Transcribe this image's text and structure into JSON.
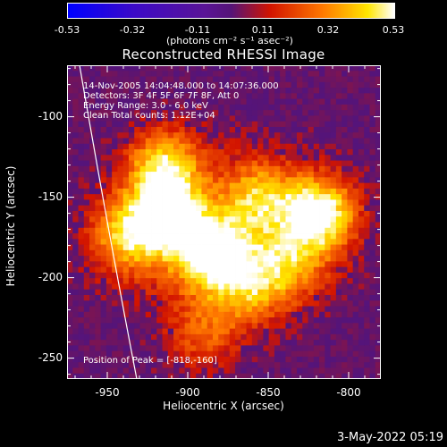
{
  "colorbar": {
    "ticks": [
      "-0.53",
      "-0.32",
      "-0.11",
      "0.11",
      "0.32",
      "0.53"
    ],
    "units": "(photons cm⁻² s⁻¹ asec⁻²)",
    "colors": [
      "#0000ff",
      "#5000c0",
      "#4a0a78",
      "#d00000",
      "#ff8000",
      "#ffff00",
      "#ffffff"
    ]
  },
  "header": {
    "title": "Reconstructed RHESSI Image"
  },
  "info": {
    "line1": "14-Nov-2005 14:04:48.000 to 14:07:36.000",
    "line2": "Detectors: 3F 4F 5F 6F 7F 8F, Att 0",
    "line3": "Energy Range: 3.0 - 6.0 keV",
    "line4": "Clean      Total counts: 1.12E+04",
    "peak": "Position of Peak = [-818,-160]"
  },
  "footer": {
    "date": "3-May-2022 05:19"
  },
  "chart_data": {
    "type": "heatmap",
    "title": "Reconstructed RHESSI Image",
    "xlabel": "Heliocentric X (arcsec)",
    "ylabel": "Heliocentric Y (arcsec)",
    "xlim": [
      -975,
      -780
    ],
    "ylim": [
      -263,
      -68
    ],
    "xticks": [
      "-950",
      "-900",
      "-850",
      "-800"
    ],
    "yticks": [
      "-100",
      "-150",
      "-200",
      "-250"
    ],
    "xtick_values": [
      -950,
      -900,
      -850,
      -800
    ],
    "ytick_values": [
      -100,
      -150,
      -200,
      -250
    ],
    "colorbar_range": [
      -0.53,
      0.53
    ],
    "peak_position": [
      -818,
      -160
    ],
    "sources": [
      {
        "x": -818,
        "y": -160,
        "intensity": 0.53
      },
      {
        "x": -915,
        "y": -162,
        "intensity": 0.48
      },
      {
        "x": -885,
        "y": -185,
        "intensity": 0.46
      },
      {
        "x": -915,
        "y": -130,
        "intensity": 0.4
      },
      {
        "x": -940,
        "y": -175,
        "intensity": 0.32
      },
      {
        "x": -855,
        "y": -150,
        "intensity": 0.3
      },
      {
        "x": -860,
        "y": -205,
        "intensity": 0.28
      },
      {
        "x": -890,
        "y": -235,
        "intensity": 0.2
      },
      {
        "x": -835,
        "y": -190,
        "intensity": 0.25
      }
    ]
  }
}
